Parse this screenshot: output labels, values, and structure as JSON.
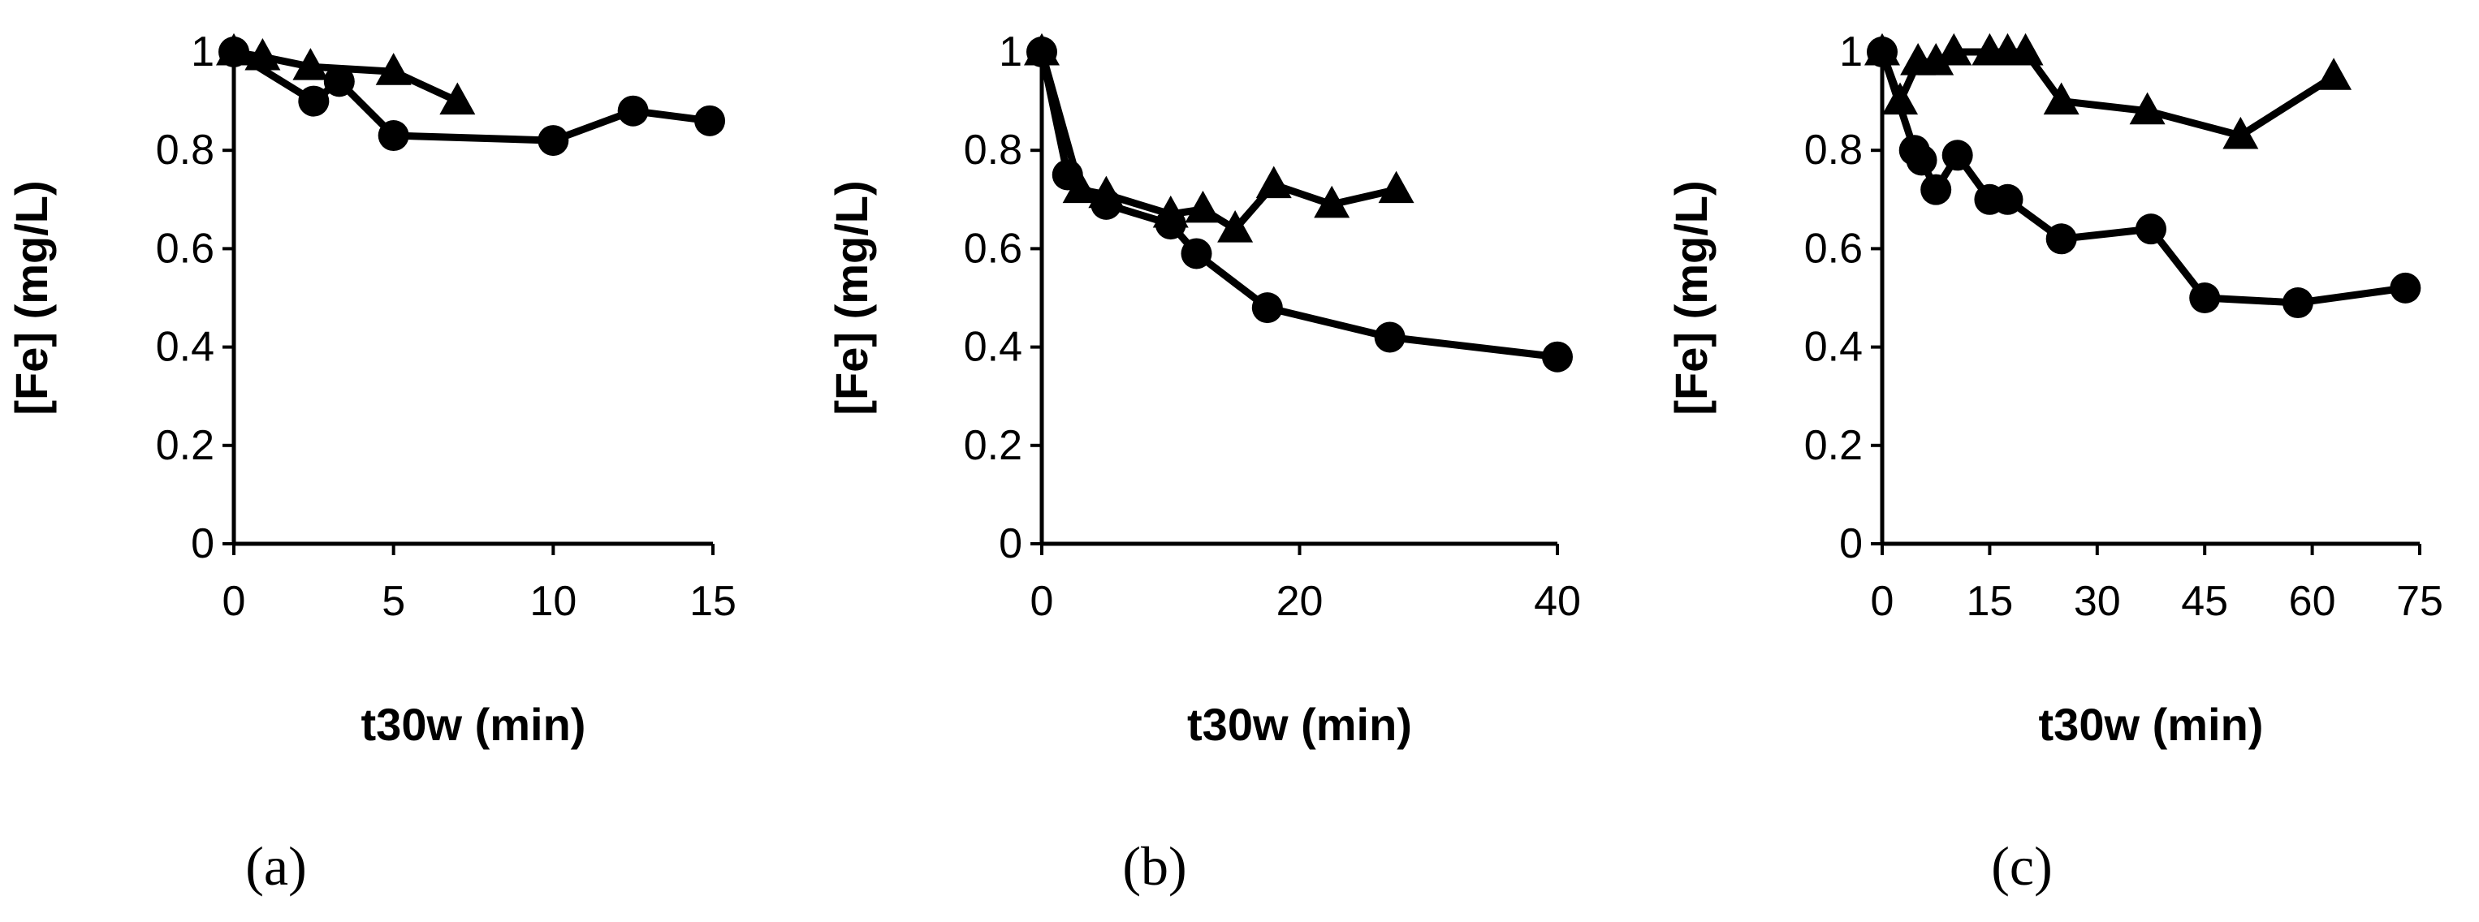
{
  "chart_data": [
    {
      "type": "line",
      "panel_label": "(a)",
      "xlabel": "t30w (min)",
      "ylabel": "[Fe] (mg/L)",
      "xlim": [
        0,
        15
      ],
      "ylim": [
        0,
        1
      ],
      "xticks": [
        0,
        5,
        10,
        15
      ],
      "yticks": [
        0,
        0.2,
        0.4,
        0.6,
        0.8,
        1
      ],
      "x_tick_labels": [
        "0",
        "5",
        "10",
        "15"
      ],
      "y_tick_labels": [
        "0",
        "0.2",
        "0.4",
        "0.6",
        "0.8",
        "1"
      ],
      "series": [
        {
          "marker": "circle",
          "x": [
            0,
            2.5,
            3.3,
            5,
            10,
            12.5,
            14.9
          ],
          "y": [
            1.0,
            0.9,
            0.94,
            0.83,
            0.82,
            0.88,
            0.86
          ]
        },
        {
          "marker": "triangle",
          "x": [
            0,
            0.9,
            2.4,
            5,
            7
          ],
          "y": [
            1.0,
            0.99,
            0.97,
            0.96,
            0.9
          ]
        }
      ]
    },
    {
      "type": "line",
      "panel_label": "(b)",
      "xlabel": "t30w (min)",
      "ylabel": "[Fe] (mg/L)",
      "xlim": [
        0,
        40
      ],
      "ylim": [
        0,
        1
      ],
      "xticks": [
        0,
        20,
        40
      ],
      "yticks": [
        0,
        0.2,
        0.4,
        0.6,
        0.8,
        1
      ],
      "x_tick_labels": [
        "0",
        "20",
        "40"
      ],
      "y_tick_labels": [
        "0",
        "0.2",
        "0.4",
        "0.6",
        "0.8",
        "1"
      ],
      "series": [
        {
          "marker": "circle",
          "x": [
            0,
            2,
            5,
            10,
            12,
            17.5,
            27,
            40
          ],
          "y": [
            1.0,
            0.75,
            0.69,
            0.65,
            0.59,
            0.48,
            0.42,
            0.38
          ]
        },
        {
          "marker": "triangle",
          "x": [
            0,
            3,
            5,
            10,
            12.5,
            15,
            18,
            22.5,
            27.5
          ],
          "y": [
            1.0,
            0.72,
            0.71,
            0.67,
            0.68,
            0.64,
            0.73,
            0.69,
            0.72
          ]
        }
      ]
    },
    {
      "type": "line",
      "panel_label": "(c)",
      "xlabel": "t30w (min)",
      "ylabel": "[Fe] (mg/L)",
      "xlim": [
        0,
        75
      ],
      "ylim": [
        0,
        1
      ],
      "xticks": [
        0,
        15,
        30,
        45,
        60,
        75
      ],
      "yticks": [
        0,
        0.2,
        0.4,
        0.6,
        0.8,
        1
      ],
      "x_tick_labels": [
        "0",
        "15",
        "30",
        "45",
        "60",
        "75"
      ],
      "y_tick_labels": [
        "0",
        "0.2",
        "0.4",
        "0.6",
        "0.8",
        "1"
      ],
      "series": [
        {
          "marker": "circle",
          "x": [
            0,
            4.5,
            5.5,
            7.5,
            10.5,
            15,
            17.5,
            25,
            37.5,
            45,
            58,
            73
          ],
          "y": [
            1.0,
            0.8,
            0.78,
            0.72,
            0.79,
            0.7,
            0.7,
            0.62,
            0.64,
            0.5,
            0.49,
            0.52
          ]
        },
        {
          "marker": "triangle",
          "x": [
            0,
            2.5,
            5,
            7.5,
            10,
            15,
            17.5,
            20,
            25,
            37,
            50,
            63
          ],
          "y": [
            1.0,
            0.9,
            0.98,
            0.98,
            1.0,
            1.0,
            1.0,
            1.0,
            0.9,
            0.88,
            0.83,
            0.95
          ]
        }
      ]
    }
  ]
}
